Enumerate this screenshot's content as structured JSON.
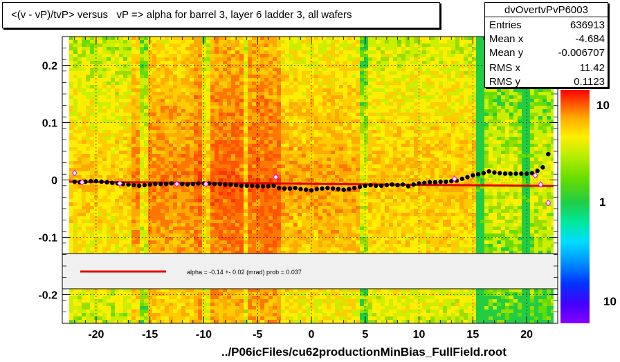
{
  "title": "<(v - vP)/tvP> versus   vP => alpha for barrel 3, layer 6 ladder 3, all wafers",
  "stats": {
    "name": "dvOvertvPvP6003",
    "rows": [
      {
        "label": "Entries",
        "value": "636913"
      },
      {
        "label": "Mean x",
        "value": "-4.684"
      },
      {
        "label": "Mean y",
        "value": "-0.006707"
      },
      {
        "label": "RMS x",
        "value": "11.42"
      },
      {
        "label": "RMS y",
        "value": "0.1123"
      }
    ]
  },
  "fit_legend": "alpha =   -0.14 +-  0.02 (mrad) prob = 0.037",
  "file_label": "../P06icFiles/cu62productionMinBias_FullField.root",
  "colors": {
    "fit_line": "#e00000",
    "profile_points": "#000000",
    "open_markers": "#ff00ff"
  },
  "chart_data": {
    "type": "scatter",
    "xlim": [
      -22.5,
      22.5
    ],
    "ylim": [
      -0.25,
      0.25
    ],
    "x_ticks": [
      -20,
      -15,
      -10,
      -5,
      0,
      5,
      10,
      15,
      20
    ],
    "x_tick_labels": [
      "-20",
      "-15",
      "-10",
      "-5",
      "0",
      "5",
      "10",
      "15",
      "20"
    ],
    "y_ticks": [
      -0.2,
      -0.1,
      0,
      0.1,
      0.2
    ],
    "y_tick_labels": [
      "-0.2",
      "-0.1",
      "0",
      "0.1",
      "0.2"
    ],
    "colorbar_labels": [
      "10",
      "1",
      "10"
    ],
    "grid": true,
    "profile": {
      "x": [
        -22.0,
        -21.5,
        -21.0,
        -20.5,
        -20.0,
        -19.5,
        -19.0,
        -18.5,
        -18.0,
        -17.5,
        -17.0,
        -16.5,
        -16.0,
        -15.5,
        -15.0,
        -14.5,
        -14.0,
        -13.5,
        -13.0,
        -12.5,
        -12.0,
        -11.5,
        -11.0,
        -10.5,
        -10.0,
        -9.5,
        -9.0,
        -8.5,
        -8.0,
        -7.5,
        -7.0,
        -6.5,
        -6.0,
        -5.5,
        -5.0,
        -4.5,
        -4.0,
        -3.5,
        -3.0,
        -2.5,
        -2.0,
        -1.5,
        -1.0,
        -0.5,
        0.0,
        0.5,
        1.0,
        1.5,
        2.0,
        2.5,
        3.0,
        3.5,
        4.0,
        4.5,
        5.0,
        5.5,
        6.0,
        6.5,
        7.0,
        7.5,
        8.0,
        8.5,
        9.0,
        9.5,
        10.0,
        10.5,
        11.0,
        11.5,
        12.0,
        12.5,
        13.0,
        13.5,
        14.0,
        14.5,
        15.0,
        15.5,
        16.0,
        16.5,
        17.0,
        17.5,
        18.0,
        18.5,
        19.0,
        19.5,
        20.0,
        20.5,
        21.0,
        21.5,
        22.0
      ],
      "y": [
        -0.003,
        -0.004,
        -0.003,
        -0.002,
        -0.002,
        -0.003,
        -0.004,
        -0.005,
        -0.006,
        -0.007,
        -0.008,
        -0.009,
        -0.01,
        -0.009,
        -0.008,
        -0.007,
        -0.007,
        -0.007,
        -0.006,
        -0.006,
        -0.007,
        -0.008,
        -0.007,
        -0.006,
        -0.006,
        -0.006,
        -0.007,
        -0.007,
        -0.008,
        -0.008,
        -0.009,
        -0.01,
        -0.01,
        -0.01,
        -0.011,
        -0.011,
        -0.011,
        -0.01,
        -0.014,
        -0.015,
        -0.015,
        -0.014,
        -0.016,
        -0.017,
        -0.018,
        -0.016,
        -0.015,
        -0.014,
        -0.015,
        -0.016,
        -0.017,
        -0.016,
        -0.014,
        -0.012,
        -0.01,
        -0.009,
        -0.01,
        -0.01,
        -0.009,
        -0.008,
        -0.009,
        -0.008,
        -0.011,
        -0.008,
        -0.006,
        -0.005,
        -0.004,
        -0.004,
        -0.003,
        -0.003,
        -0.002,
        -0.001,
        0.002,
        0.005,
        0.008,
        0.01,
        0.012,
        0.015,
        0.013,
        0.012,
        0.011,
        0.011,
        0.011,
        0.011,
        0.011,
        0.012,
        0.016,
        0.022,
        0.045
      ]
    },
    "open_points": {
      "x": [
        -22.0,
        -21.3,
        -17.8,
        -12.5,
        -9.8,
        -3.3,
        13.3,
        20.8,
        21.3,
        22.0
      ],
      "y": [
        0.012,
        -0.004,
        -0.006,
        -0.007,
        -0.007,
        0.005,
        0.002,
        0.008,
        -0.008,
        -0.04
      ]
    },
    "fit_line": {
      "x": [
        -22.5,
        22.5
      ],
      "y": [
        -0.003,
        -0.0105
      ]
    }
  }
}
